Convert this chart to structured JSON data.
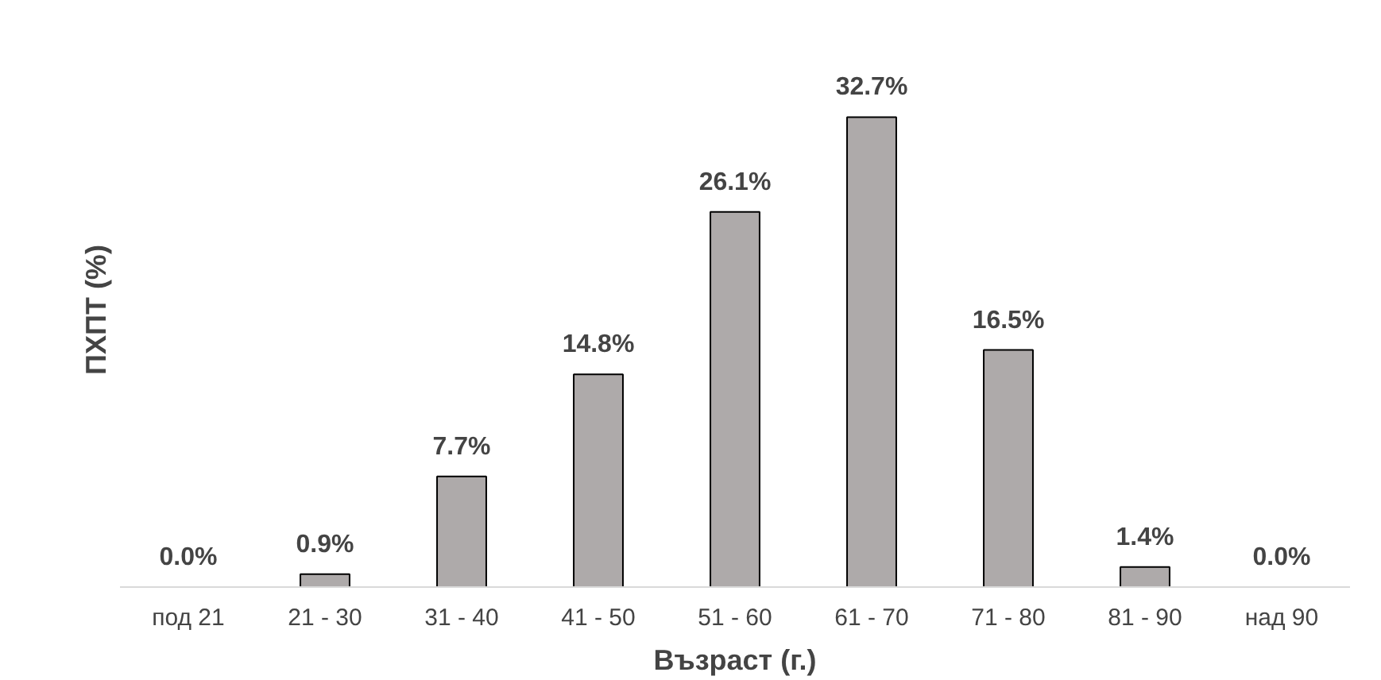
{
  "chart_data": {
    "type": "bar",
    "xlabel": "Възраст (г.)",
    "ylabel": "ПХПТ (%)",
    "categories": [
      "под 21",
      "21 - 30",
      "31 - 40",
      "41 - 50",
      "51 - 60",
      "61 - 70",
      "71 - 80",
      "81 - 90",
      "над 90"
    ],
    "values": [
      0.0,
      0.9,
      7.7,
      14.8,
      26.1,
      32.7,
      16.5,
      1.4,
      0.0
    ],
    "value_labels": [
      "0.0%",
      "0.9%",
      "7.7%",
      "14.8%",
      "26.1%",
      "32.7%",
      "16.5%",
      "1.4%",
      "0.0%"
    ],
    "color": "#aeaaaa",
    "tick_labels": "x"
  }
}
